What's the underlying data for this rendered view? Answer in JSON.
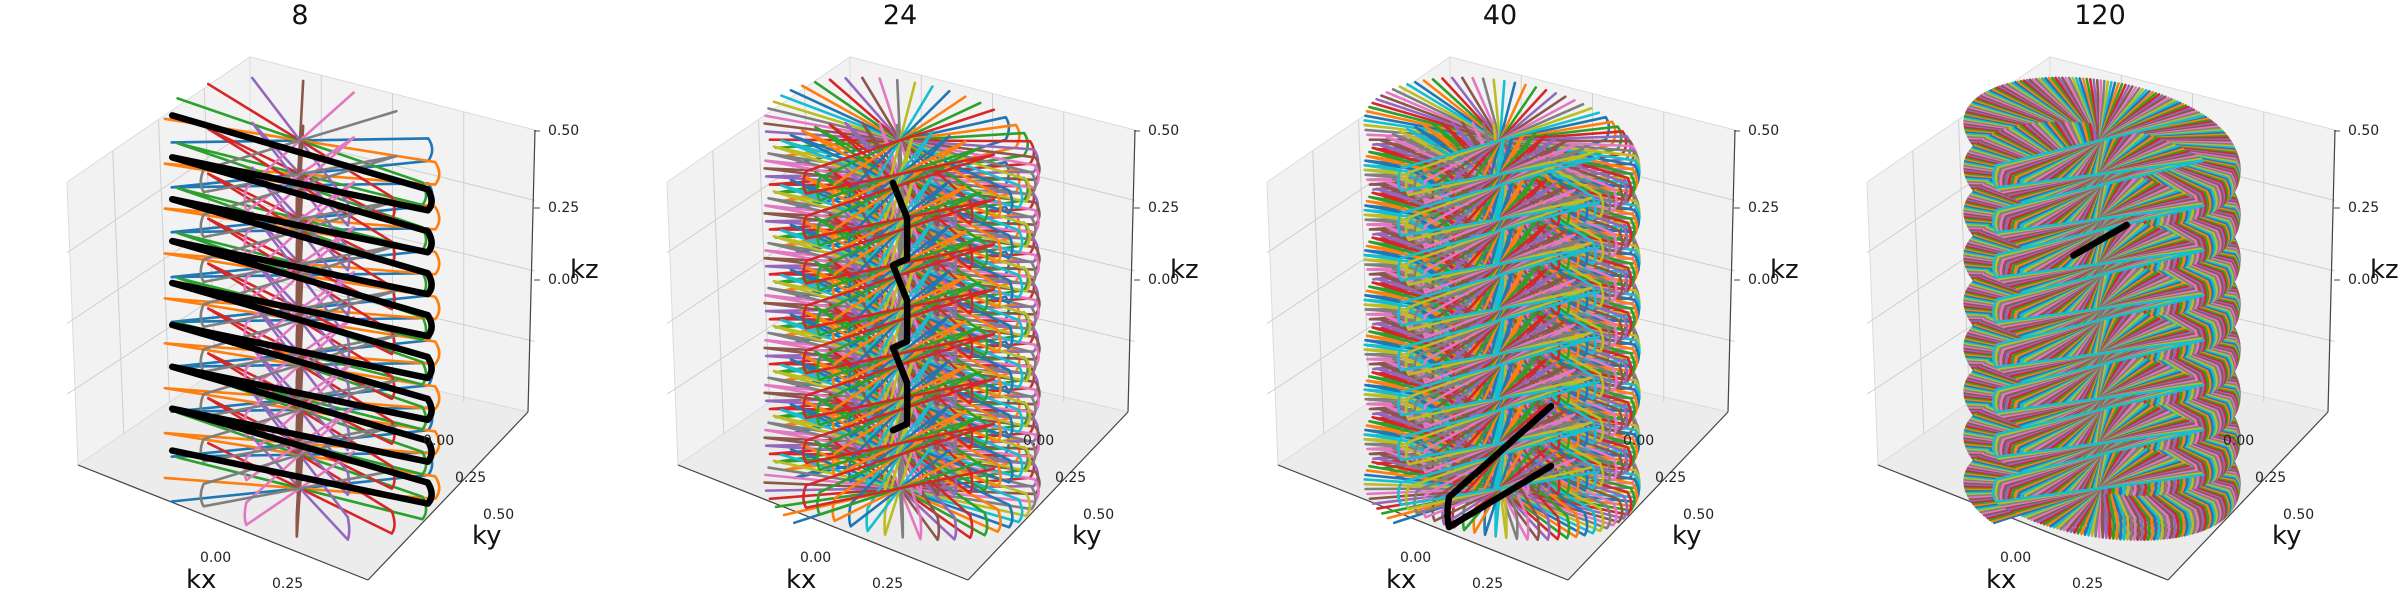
{
  "chart_data": [
    {
      "type": "line",
      "title": "8",
      "plot": "3d",
      "xlabel": "kx",
      "ylabel": "ky",
      "zlabel": "kz",
      "xticks": [
        "0.00",
        "0.25"
      ],
      "yticks": [
        "0.00",
        "0.25",
        "0.50"
      ],
      "zticks": [
        "0.00",
        "0.25",
        "0.50"
      ],
      "xlim": [
        -0.5,
        0.5
      ],
      "ylim": [
        -0.5,
        0.5
      ],
      "zlim": [
        -0.5,
        0.5
      ],
      "series": [
        {
          "color": "#1f77b4",
          "angle": 20
        },
        {
          "color": "#ff7f0e",
          "angle": 42
        },
        {
          "color": "#2ca02c",
          "angle": 64
        },
        {
          "color": "#d62728",
          "angle": 86
        },
        {
          "color": "#9467bd",
          "angle": 108
        },
        {
          "color": "#8c564b",
          "angle": 130
        },
        {
          "color": "#e377c2",
          "angle": 152
        },
        {
          "color": "#7f7f7f",
          "angle": 174
        }
      ],
      "highlight": {
        "color": "#000000",
        "angle": 58,
        "turns": 8,
        "z": [
          -0.42,
          0.42
        ],
        "extent": 1.0
      },
      "grid": true
    },
    {
      "type": "line",
      "title": "24",
      "plot": "3d",
      "xlabel": "kx",
      "ylabel": "ky",
      "zlabel": "kz",
      "xticks": [
        "0.00",
        "0.25"
      ],
      "yticks": [
        "0.00",
        "0.25",
        "0.50"
      ],
      "zticks": [
        "0.00",
        "0.25",
        "0.50"
      ],
      "xlim": [
        -0.5,
        0.5
      ],
      "ylim": [
        -0.5,
        0.5
      ],
      "zlim": [
        -0.5,
        0.5
      ],
      "series": [
        {
          "color": "#1f77b4",
          "angle": 0
        },
        {
          "color": "#ff7f0e",
          "angle": 7.5
        },
        {
          "color": "#2ca02c",
          "angle": 15
        },
        {
          "color": "#d62728",
          "angle": 22.5
        },
        {
          "color": "#9467bd",
          "angle": 30
        },
        {
          "color": "#8c564b",
          "angle": 37.5
        },
        {
          "color": "#e377c2",
          "angle": 45
        },
        {
          "color": "#7f7f7f",
          "angle": 52.5
        },
        {
          "color": "#bcbd22",
          "angle": 60
        },
        {
          "color": "#17becf",
          "angle": 67.5
        },
        {
          "color": "#1f77b4",
          "angle": 75
        },
        {
          "color": "#ff7f0e",
          "angle": 82.5
        },
        {
          "color": "#2ca02c",
          "angle": 90
        },
        {
          "color": "#d62728",
          "angle": 97.5
        },
        {
          "color": "#9467bd",
          "angle": 105
        },
        {
          "color": "#8c564b",
          "angle": 112.5
        },
        {
          "color": "#e377c2",
          "angle": 120
        },
        {
          "color": "#7f7f7f",
          "angle": 127.5
        },
        {
          "color": "#bcbd22",
          "angle": 135
        },
        {
          "color": "#17becf",
          "angle": 142.5
        },
        {
          "color": "#1f77b4",
          "angle": 150
        },
        {
          "color": "#ff7f0e",
          "angle": 157.5
        },
        {
          "color": "#2ca02c",
          "angle": 165
        },
        {
          "color": "#d62728",
          "angle": 172.5
        }
      ],
      "highlight": {
        "color": "#000000",
        "angle": 118,
        "turns": 3,
        "z": [
          -0.32,
          0.3
        ],
        "extent": 0.28
      },
      "grid": true
    },
    {
      "type": "line",
      "title": "40",
      "plot": "3d",
      "xlabel": "kx",
      "ylabel": "ky",
      "zlabel": "kz",
      "xticks": [
        "0.00",
        "0.25"
      ],
      "yticks": [
        "0.00",
        "0.25",
        "0.50"
      ],
      "zticks": [
        "0.00",
        "0.25",
        "0.50"
      ],
      "xlim": [
        -0.5,
        0.5
      ],
      "ylim": [
        -0.5,
        0.5
      ],
      "zlim": [
        -0.5,
        0.5
      ],
      "series": [
        {
          "color": "#1f77b4",
          "angle": 0
        },
        {
          "color": "#ff7f0e",
          "angle": 4.5
        },
        {
          "color": "#2ca02c",
          "angle": 9
        },
        {
          "color": "#d62728",
          "angle": 13.5
        },
        {
          "color": "#9467bd",
          "angle": 18
        },
        {
          "color": "#8c564b",
          "angle": 22.5
        },
        {
          "color": "#e377c2",
          "angle": 27
        },
        {
          "color": "#7f7f7f",
          "angle": 31.5
        },
        {
          "color": "#bcbd22",
          "angle": 36
        },
        {
          "color": "#17becf",
          "angle": 40.5
        },
        {
          "color": "#1f77b4",
          "angle": 45
        },
        {
          "color": "#ff7f0e",
          "angle": 49.5
        },
        {
          "color": "#2ca02c",
          "angle": 54
        },
        {
          "color": "#d62728",
          "angle": 58.5
        },
        {
          "color": "#9467bd",
          "angle": 63
        },
        {
          "color": "#8c564b",
          "angle": 67.5
        },
        {
          "color": "#e377c2",
          "angle": 72
        },
        {
          "color": "#7f7f7f",
          "angle": 76.5
        },
        {
          "color": "#bcbd22",
          "angle": 81
        },
        {
          "color": "#17becf",
          "angle": 85.5
        },
        {
          "color": "#1f77b4",
          "angle": 90
        },
        {
          "color": "#ff7f0e",
          "angle": 94.5
        },
        {
          "color": "#2ca02c",
          "angle": 99
        },
        {
          "color": "#d62728",
          "angle": 103.5
        },
        {
          "color": "#9467bd",
          "angle": 108
        },
        {
          "color": "#8c564b",
          "angle": 112.5
        },
        {
          "color": "#e377c2",
          "angle": 117
        },
        {
          "color": "#7f7f7f",
          "angle": 121.5
        },
        {
          "color": "#bcbd22",
          "angle": 126
        },
        {
          "color": "#17becf",
          "angle": 130.5
        },
        {
          "color": "#1f77b4",
          "angle": 135
        },
        {
          "color": "#ff7f0e",
          "angle": 139.5
        },
        {
          "color": "#2ca02c",
          "angle": 144
        },
        {
          "color": "#d62728",
          "angle": 148.5
        },
        {
          "color": "#9467bd",
          "angle": 153
        },
        {
          "color": "#8c564b",
          "angle": 157.5
        },
        {
          "color": "#e377c2",
          "angle": 162
        },
        {
          "color": "#7f7f7f",
          "angle": 166.5
        },
        {
          "color": "#bcbd22",
          "angle": 171
        },
        {
          "color": "#17becf",
          "angle": 175.5
        }
      ],
      "highlight": {
        "color": "#000000",
        "angle": 152,
        "turns": 1,
        "z": [
          -0.48,
          -0.33
        ],
        "extent": 0.95
      },
      "grid": true
    },
    {
      "type": "line",
      "title": "120",
      "plot": "3d",
      "xlabel": "kx",
      "ylabel": "ky",
      "zlabel": "kz",
      "xticks": [
        "0.00",
        "0.25"
      ],
      "yticks": [
        "0.00",
        "0.25",
        "0.50"
      ],
      "zticks": [
        "0.00",
        "0.25",
        "0.50"
      ],
      "xlim": [
        -0.5,
        0.5
      ],
      "ylim": [
        -0.5,
        0.5
      ],
      "zlim": [
        -0.5,
        0.5
      ],
      "series": [
        {
          "color": "#1f77b4",
          "angle": 0
        },
        {
          "color": "#ff7f0e",
          "angle": 1.5
        },
        {
          "color": "#2ca02c",
          "angle": 3
        },
        {
          "color": "#d62728",
          "angle": 4.5
        },
        {
          "color": "#9467bd",
          "angle": 6
        },
        {
          "color": "#8c564b",
          "angle": 7.5
        },
        {
          "color": "#e377c2",
          "angle": 9
        },
        {
          "color": "#7f7f7f",
          "angle": 10.5
        },
        {
          "color": "#bcbd22",
          "angle": 12
        },
        {
          "color": "#17becf",
          "angle": 13.5
        },
        {
          "color": "#1f77b4",
          "angle": 15
        },
        {
          "color": "#ff7f0e",
          "angle": 16.5
        },
        {
          "color": "#2ca02c",
          "angle": 18
        },
        {
          "color": "#d62728",
          "angle": 19.5
        },
        {
          "color": "#9467bd",
          "angle": 21
        },
        {
          "color": "#8c564b",
          "angle": 22.5
        },
        {
          "color": "#e377c2",
          "angle": 24
        },
        {
          "color": "#7f7f7f",
          "angle": 25.5
        },
        {
          "color": "#bcbd22",
          "angle": 27
        },
        {
          "color": "#17becf",
          "angle": 28.5
        },
        {
          "color": "#1f77b4",
          "angle": 30
        },
        {
          "color": "#ff7f0e",
          "angle": 31.5
        },
        {
          "color": "#2ca02c",
          "angle": 33
        },
        {
          "color": "#d62728",
          "angle": 34.5
        },
        {
          "color": "#9467bd",
          "angle": 36
        },
        {
          "color": "#8c564b",
          "angle": 37.5
        },
        {
          "color": "#e377c2",
          "angle": 39
        },
        {
          "color": "#7f7f7f",
          "angle": 40.5
        },
        {
          "color": "#bcbd22",
          "angle": 42
        },
        {
          "color": "#17becf",
          "angle": 43.5
        },
        {
          "color": "#1f77b4",
          "angle": 45
        },
        {
          "color": "#ff7f0e",
          "angle": 46.5
        },
        {
          "color": "#2ca02c",
          "angle": 48
        },
        {
          "color": "#d62728",
          "angle": 49.5
        },
        {
          "color": "#9467bd",
          "angle": 51
        },
        {
          "color": "#8c564b",
          "angle": 52.5
        },
        {
          "color": "#e377c2",
          "angle": 54
        },
        {
          "color": "#7f7f7f",
          "angle": 55.5
        },
        {
          "color": "#bcbd22",
          "angle": 57
        },
        {
          "color": "#17becf",
          "angle": 58.5
        },
        {
          "color": "#1f77b4",
          "angle": 60
        },
        {
          "color": "#ff7f0e",
          "angle": 61.5
        },
        {
          "color": "#2ca02c",
          "angle": 63
        },
        {
          "color": "#d62728",
          "angle": 64.5
        },
        {
          "color": "#9467bd",
          "angle": 66
        },
        {
          "color": "#8c564b",
          "angle": 67.5
        },
        {
          "color": "#e377c2",
          "angle": 69
        },
        {
          "color": "#7f7f7f",
          "angle": 70.5
        },
        {
          "color": "#bcbd22",
          "angle": 72
        },
        {
          "color": "#17becf",
          "angle": 73.5
        },
        {
          "color": "#1f77b4",
          "angle": 75
        },
        {
          "color": "#ff7f0e",
          "angle": 76.5
        },
        {
          "color": "#2ca02c",
          "angle": 78
        },
        {
          "color": "#d62728",
          "angle": 79.5
        },
        {
          "color": "#9467bd",
          "angle": 81
        },
        {
          "color": "#8c564b",
          "angle": 82.5
        },
        {
          "color": "#e377c2",
          "angle": 84
        },
        {
          "color": "#7f7f7f",
          "angle": 85.5
        },
        {
          "color": "#bcbd22",
          "angle": 87
        },
        {
          "color": "#17becf",
          "angle": 88.5
        },
        {
          "color": "#1f77b4",
          "angle": 90
        },
        {
          "color": "#ff7f0e",
          "angle": 91.5
        },
        {
          "color": "#2ca02c",
          "angle": 93
        },
        {
          "color": "#d62728",
          "angle": 94.5
        },
        {
          "color": "#9467bd",
          "angle": 96
        },
        {
          "color": "#8c564b",
          "angle": 97.5
        },
        {
          "color": "#e377c2",
          "angle": 99
        },
        {
          "color": "#7f7f7f",
          "angle": 100.5
        },
        {
          "color": "#bcbd22",
          "angle": 102
        },
        {
          "color": "#17becf",
          "angle": 103.5
        },
        {
          "color": "#1f77b4",
          "angle": 105
        },
        {
          "color": "#ff7f0e",
          "angle": 106.5
        },
        {
          "color": "#2ca02c",
          "angle": 108
        },
        {
          "color": "#d62728",
          "angle": 109.5
        },
        {
          "color": "#9467bd",
          "angle": 111
        },
        {
          "color": "#8c564b",
          "angle": 112.5
        },
        {
          "color": "#e377c2",
          "angle": 114
        },
        {
          "color": "#7f7f7f",
          "angle": 115.5
        },
        {
          "color": "#bcbd22",
          "angle": 117
        },
        {
          "color": "#17becf",
          "angle": 118.5
        },
        {
          "color": "#1f77b4",
          "angle": 120
        },
        {
          "color": "#ff7f0e",
          "angle": 121.5
        },
        {
          "color": "#2ca02c",
          "angle": 123
        },
        {
          "color": "#d62728",
          "angle": 124.5
        },
        {
          "color": "#9467bd",
          "angle": 126
        },
        {
          "color": "#8c564b",
          "angle": 127.5
        },
        {
          "color": "#e377c2",
          "angle": 129
        },
        {
          "color": "#7f7f7f",
          "angle": 130.5
        },
        {
          "color": "#bcbd22",
          "angle": 132
        },
        {
          "color": "#17becf",
          "angle": 133.5
        },
        {
          "color": "#1f77b4",
          "angle": 135
        },
        {
          "color": "#ff7f0e",
          "angle": 136.5
        },
        {
          "color": "#2ca02c",
          "angle": 138
        },
        {
          "color": "#d62728",
          "angle": 139.5
        },
        {
          "color": "#9467bd",
          "angle": 141
        },
        {
          "color": "#8c564b",
          "angle": 142.5
        },
        {
          "color": "#e377c2",
          "angle": 144
        },
        {
          "color": "#7f7f7f",
          "angle": 145.5
        },
        {
          "color": "#bcbd22",
          "angle": 147
        },
        {
          "color": "#17becf",
          "angle": 148.5
        },
        {
          "color": "#1f77b4",
          "angle": 150
        },
        {
          "color": "#ff7f0e",
          "angle": 151.5
        },
        {
          "color": "#2ca02c",
          "angle": 153
        },
        {
          "color": "#d62728",
          "angle": 154.5
        },
        {
          "color": "#9467bd",
          "angle": 156
        },
        {
          "color": "#8c564b",
          "angle": 157.5
        },
        {
          "color": "#e377c2",
          "angle": 159
        },
        {
          "color": "#7f7f7f",
          "angle": 160.5
        },
        {
          "color": "#bcbd22",
          "angle": 162
        },
        {
          "color": "#17becf",
          "angle": 163.5
        },
        {
          "color": "#1f77b4",
          "angle": 165
        },
        {
          "color": "#ff7f0e",
          "angle": 166.5
        },
        {
          "color": "#2ca02c",
          "angle": 168
        },
        {
          "color": "#d62728",
          "angle": 169.5
        },
        {
          "color": "#9467bd",
          "angle": 171
        },
        {
          "color": "#8c564b",
          "angle": 172.5
        },
        {
          "color": "#e377c2",
          "angle": 174
        },
        {
          "color": "#7f7f7f",
          "angle": 175.5
        },
        {
          "color": "#bcbd22",
          "angle": 177
        },
        {
          "color": "#17becf",
          "angle": 178.5
        }
      ],
      "highlight": {
        "color": "#000000",
        "angle": 140,
        "turns": 0,
        "z": [
          0.2,
          0.2
        ],
        "extent": 1.0
      },
      "grid": true
    }
  ]
}
